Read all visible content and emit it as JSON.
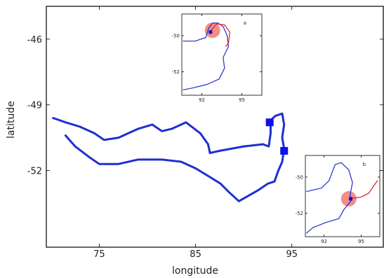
{
  "chart_data": [
    {
      "id": "main",
      "type": "line",
      "xlabel": "longitude",
      "ylabel": "latitude",
      "xlim": [
        69.5,
        104.5
      ],
      "ylim": [
        -55.5,
        -44.5
      ],
      "xticks": [
        75,
        85,
        95
      ],
      "yticks": [
        -46,
        -49,
        -52
      ],
      "grid": false,
      "series": [
        {
          "values": [
            [
              70.2,
              -49.6
            ],
            [
              71.5,
              -49.8
            ],
            [
              73.0,
              -50.0
            ],
            [
              74.5,
              -50.3
            ],
            [
              75.5,
              -50.6
            ],
            [
              77.0,
              -50.5
            ],
            [
              79.0,
              -50.1
            ],
            [
              80.5,
              -49.9
            ],
            [
              81.5,
              -50.2
            ],
            [
              82.5,
              -50.1
            ],
            [
              84.0,
              -49.8
            ],
            [
              85.5,
              -50.3
            ],
            [
              86.3,
              -50.8
            ],
            [
              86.5,
              -51.2
            ],
            [
              87.5,
              -51.1
            ],
            [
              90.0,
              -50.9
            ],
            [
              92.0,
              -50.8
            ],
            [
              92.6,
              -50.9
            ],
            [
              92.8,
              -50.3
            ],
            [
              92.8,
              -49.7
            ],
            [
              93.3,
              -49.5
            ],
            [
              94.0,
              -49.4
            ],
            [
              94.2,
              -49.9
            ],
            [
              94.0,
              -50.5
            ],
            [
              94.2,
              -51.0
            ],
            [
              94.0,
              -51.6
            ],
            [
              93.6,
              -52.0
            ],
            [
              93.2,
              -52.5
            ],
            [
              92.5,
              -52.6
            ],
            [
              91.5,
              -52.9
            ],
            [
              90.7,
              -53.1
            ],
            [
              89.5,
              -53.4
            ],
            [
              88.5,
              -53.0
            ],
            [
              87.6,
              -52.6
            ],
            [
              86.5,
              -52.3
            ],
            [
              85.0,
              -51.9
            ],
            [
              83.5,
              -51.6
            ],
            [
              81.5,
              -51.5
            ],
            [
              79.0,
              -51.5
            ],
            [
              77.0,
              -51.7
            ],
            [
              75.0,
              -51.7
            ],
            [
              74.0,
              -51.4
            ],
            [
              72.5,
              -50.9
            ],
            [
              71.5,
              -50.4
            ]
          ]
        }
      ],
      "markers": [
        [
          92.7,
          -49.8
        ],
        [
          94.2,
          -51.1
        ]
      ],
      "colors": {
        "line": "#1f2fd0",
        "marker": "#0a10ee"
      }
    },
    {
      "id": "inset-a",
      "type": "line",
      "label": "a",
      "xlim": [
        90.5,
        96.5
      ],
      "ylim": [
        -53.3,
        -48.8
      ],
      "xticks": [
        92,
        95
      ],
      "yticks": [
        -50,
        -52
      ],
      "grid": false,
      "series": [
        {
          "values": [
            [
              90.6,
              -50.3
            ],
            [
              91.5,
              -50.3
            ],
            [
              92.3,
              -50.1
            ],
            [
              92.5,
              -49.6
            ],
            [
              92.8,
              -49.3
            ],
            [
              93.2,
              -49.3
            ],
            [
              93.6,
              -49.5
            ],
            [
              93.9,
              -50.0
            ],
            [
              94.0,
              -50.6
            ],
            [
              93.6,
              -51.2
            ],
            [
              93.7,
              -51.8
            ],
            [
              93.3,
              -52.4
            ],
            [
              92.4,
              -52.7
            ],
            [
              91.3,
              -52.9
            ],
            [
              90.6,
              -53.0
            ]
          ],
          "color": "#1f2fd0"
        },
        {
          "values": [
            [
              92.7,
              -49.7
            ],
            [
              93.1,
              -49.35
            ],
            [
              93.7,
              -49.4
            ],
            [
              94.1,
              -49.8
            ],
            [
              94.0,
              -50.4
            ],
            [
              93.8,
              -50.6
            ]
          ],
          "color": "#dd1c1c"
        }
      ],
      "markers": [
        [
          92.65,
          -49.8
        ]
      ],
      "highlight": [
        92.8,
        -49.7
      ],
      "colors": {
        "line": "#1f2fd0",
        "track": "#dd1c1c",
        "marker": "#0a10ee",
        "highlight": "#f07a72"
      }
    },
    {
      "id": "inset-b",
      "type": "line",
      "label": "b",
      "xlim": [
        90.5,
        96.5
      ],
      "ylim": [
        -53.3,
        -48.8
      ],
      "xticks": [
        92,
        95
      ],
      "yticks": [
        -50,
        -52
      ],
      "grid": false,
      "series": [
        {
          "values": [
            [
              90.6,
              -50.8
            ],
            [
              91.8,
              -50.6
            ],
            [
              92.4,
              -50.2
            ],
            [
              92.9,
              -49.3
            ],
            [
              93.4,
              -49.2
            ],
            [
              94.0,
              -49.6
            ],
            [
              94.3,
              -50.3
            ],
            [
              94.1,
              -51.0
            ],
            [
              94.2,
              -51.3
            ],
            [
              93.6,
              -51.8
            ],
            [
              93.2,
              -52.3
            ],
            [
              92.2,
              -52.5
            ],
            [
              91.1,
              -52.8
            ],
            [
              90.6,
              -53.1
            ]
          ],
          "color": "#1f2fd0"
        },
        {
          "values": [
            [
              94.1,
              -51.2
            ],
            [
              95.0,
              -51.1
            ],
            [
              95.6,
              -50.9
            ],
            [
              96.0,
              -50.5
            ],
            [
              96.3,
              -50.2
            ]
          ],
          "color": "#dd1c1c"
        }
      ],
      "markers": [
        [
          94.15,
          -51.2
        ]
      ],
      "highlight": [
        94.0,
        -51.2
      ],
      "colors": {
        "line": "#1f2fd0",
        "track": "#dd1c1c",
        "marker": "#0a10ee",
        "highlight": "#f07a72"
      }
    }
  ]
}
